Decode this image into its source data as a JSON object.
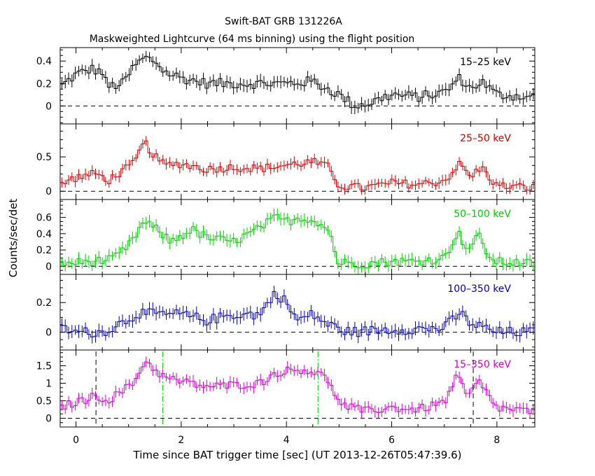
{
  "chart_data": {
    "type": "line",
    "title": "Swift-BAT GRB 131226A",
    "subtitle": "Maskweighted Lightcurve (64 ms binning) using the flight position",
    "xlabel": "Time since BAT trigger time [sec] (UT 2013-12-26T05:47:39.6)",
    "ylabel": "Counts/sec/det",
    "xlim": [
      -0.3,
      8.72
    ],
    "xticks": [
      0,
      2,
      4,
      6,
      8
    ],
    "bin_width": 0.064,
    "panels": [
      {
        "band": "15-25 keV",
        "color": "#000000",
        "ylim": [
          -0.16,
          0.52
        ],
        "yticks": [
          0,
          0.2,
          0.4
        ],
        "ytick_labels": [
          "0",
          "0.2",
          "0.4"
        ],
        "keypoints": [
          [
            -0.3,
            0.17
          ],
          [
            0.0,
            0.28
          ],
          [
            0.3,
            0.33
          ],
          [
            0.5,
            0.3
          ],
          [
            0.6,
            0.17
          ],
          [
            0.9,
            0.2
          ],
          [
            1.1,
            0.35
          ],
          [
            1.3,
            0.43
          ],
          [
            1.5,
            0.4
          ],
          [
            1.7,
            0.3
          ],
          [
            2.0,
            0.25
          ],
          [
            2.5,
            0.2
          ],
          [
            3.0,
            0.2
          ],
          [
            3.5,
            0.2
          ],
          [
            4.0,
            0.2
          ],
          [
            4.5,
            0.22
          ],
          [
            5.0,
            0.1
          ],
          [
            5.3,
            0.0
          ],
          [
            5.6,
            0.03
          ],
          [
            6.0,
            0.1
          ],
          [
            6.5,
            0.08
          ],
          [
            7.0,
            0.12
          ],
          [
            7.3,
            0.25
          ],
          [
            7.5,
            0.15
          ],
          [
            7.7,
            0.22
          ],
          [
            8.0,
            0.1
          ],
          [
            8.72,
            0.08
          ]
        ],
        "noise": 0.045,
        "err": 0.05
      },
      {
        "band": "25-50 keV",
        "color": "#cc0000",
        "ylim": [
          -0.12,
          0.98
        ],
        "yticks": [
          0,
          0.5
        ],
        "ytick_labels": [
          "0",
          "0.5"
        ],
        "keypoints": [
          [
            -0.3,
            0.1
          ],
          [
            0.0,
            0.2
          ],
          [
            0.4,
            0.26
          ],
          [
            0.6,
            0.15
          ],
          [
            0.9,
            0.3
          ],
          [
            1.1,
            0.4
          ],
          [
            1.3,
            0.72
          ],
          [
            1.5,
            0.5
          ],
          [
            1.7,
            0.38
          ],
          [
            2.0,
            0.4
          ],
          [
            2.5,
            0.32
          ],
          [
            3.0,
            0.35
          ],
          [
            3.5,
            0.33
          ],
          [
            4.0,
            0.38
          ],
          [
            4.5,
            0.43
          ],
          [
            4.8,
            0.35
          ],
          [
            5.0,
            0.08
          ],
          [
            5.5,
            0.05
          ],
          [
            6.0,
            0.12
          ],
          [
            6.5,
            0.1
          ],
          [
            7.0,
            0.15
          ],
          [
            7.3,
            0.4
          ],
          [
            7.5,
            0.2
          ],
          [
            7.7,
            0.35
          ],
          [
            8.0,
            0.08
          ],
          [
            8.72,
            0.05
          ]
        ],
        "noise": 0.06,
        "err": 0.07
      },
      {
        "band": "50-100 keV",
        "color": "#00cc00",
        "ylim": [
          -0.1,
          0.82
        ],
        "yticks": [
          0,
          0.2,
          0.4,
          0.6
        ],
        "ytick_labels": [
          "0",
          "0.2",
          "0.4",
          "0.6"
        ],
        "keypoints": [
          [
            -0.3,
            0.03
          ],
          [
            0.3,
            0.06
          ],
          [
            0.7,
            0.08
          ],
          [
            1.0,
            0.25
          ],
          [
            1.3,
            0.55
          ],
          [
            1.6,
            0.42
          ],
          [
            1.8,
            0.3
          ],
          [
            2.2,
            0.45
          ],
          [
            2.5,
            0.35
          ],
          [
            3.0,
            0.3
          ],
          [
            3.5,
            0.47
          ],
          [
            3.8,
            0.6
          ],
          [
            4.0,
            0.55
          ],
          [
            4.3,
            0.6
          ],
          [
            4.6,
            0.55
          ],
          [
            4.85,
            0.4
          ],
          [
            4.95,
            0.05
          ],
          [
            5.5,
            0.03
          ],
          [
            6.0,
            0.06
          ],
          [
            6.5,
            0.06
          ],
          [
            7.0,
            0.1
          ],
          [
            7.25,
            0.42
          ],
          [
            7.45,
            0.2
          ],
          [
            7.65,
            0.38
          ],
          [
            7.9,
            0.06
          ],
          [
            8.72,
            0.03
          ]
        ],
        "noise": 0.055,
        "err": 0.07
      },
      {
        "band": "100-350 keV",
        "color": "#0000aa",
        "ylim": [
          -0.12,
          0.39
        ],
        "yticks": [
          0,
          0.2
        ],
        "ytick_labels": [
          "0",
          "0.2"
        ],
        "keypoints": [
          [
            -0.3,
            0.03
          ],
          [
            0.0,
            0.0
          ],
          [
            0.5,
            0.0
          ],
          [
            0.8,
            0.05
          ],
          [
            1.2,
            0.13
          ],
          [
            1.5,
            0.12
          ],
          [
            2.0,
            0.12
          ],
          [
            2.5,
            0.08
          ],
          [
            3.0,
            0.12
          ],
          [
            3.5,
            0.12
          ],
          [
            3.8,
            0.27
          ],
          [
            4.0,
            0.2
          ],
          [
            4.2,
            0.08
          ],
          [
            4.5,
            0.12
          ],
          [
            4.8,
            0.05
          ],
          [
            5.2,
            0.0
          ],
          [
            6.0,
            0.02
          ],
          [
            6.5,
            0.02
          ],
          [
            7.0,
            0.03
          ],
          [
            7.3,
            0.13
          ],
          [
            7.5,
            0.06
          ],
          [
            8.0,
            0.0
          ],
          [
            8.72,
            0.0
          ]
        ],
        "noise": 0.035,
        "err": 0.04
      },
      {
        "band": "15-350 keV",
        "color": "#cc00cc",
        "ylim": [
          -0.25,
          1.95
        ],
        "yticks": [
          0,
          0.5,
          1,
          1.5
        ],
        "ytick_labels": [
          "0",
          "0.5",
          "1",
          "1.5"
        ],
        "keypoints": [
          [
            -0.3,
            0.32
          ],
          [
            0.0,
            0.45
          ],
          [
            0.4,
            0.65
          ],
          [
            0.6,
            0.5
          ],
          [
            0.9,
            0.8
          ],
          [
            1.1,
            1.0
          ],
          [
            1.3,
            1.65
          ],
          [
            1.5,
            1.4
          ],
          [
            1.7,
            1.15
          ],
          [
            2.0,
            1.05
          ],
          [
            2.5,
            0.9
          ],
          [
            3.0,
            0.95
          ],
          [
            3.5,
            1.0
          ],
          [
            3.8,
            1.3
          ],
          [
            4.0,
            1.35
          ],
          [
            4.3,
            1.4
          ],
          [
            4.6,
            1.3
          ],
          [
            4.85,
            1.0
          ],
          [
            5.0,
            0.4
          ],
          [
            5.5,
            0.2
          ],
          [
            6.0,
            0.3
          ],
          [
            6.5,
            0.25
          ],
          [
            7.0,
            0.45
          ],
          [
            7.25,
            1.2
          ],
          [
            7.45,
            0.6
          ],
          [
            7.65,
            1.05
          ],
          [
            8.0,
            0.3
          ],
          [
            8.72,
            0.18
          ]
        ],
        "noise": 0.12,
        "err": 0.15,
        "markers": [
          {
            "x": 0.38,
            "style": "black-dashed"
          },
          {
            "x": 1.65,
            "style": "green-dashdot"
          },
          {
            "x": 4.6,
            "style": "green-dashdot"
          },
          {
            "x": 7.55,
            "style": "black-dashed"
          }
        ]
      }
    ]
  }
}
